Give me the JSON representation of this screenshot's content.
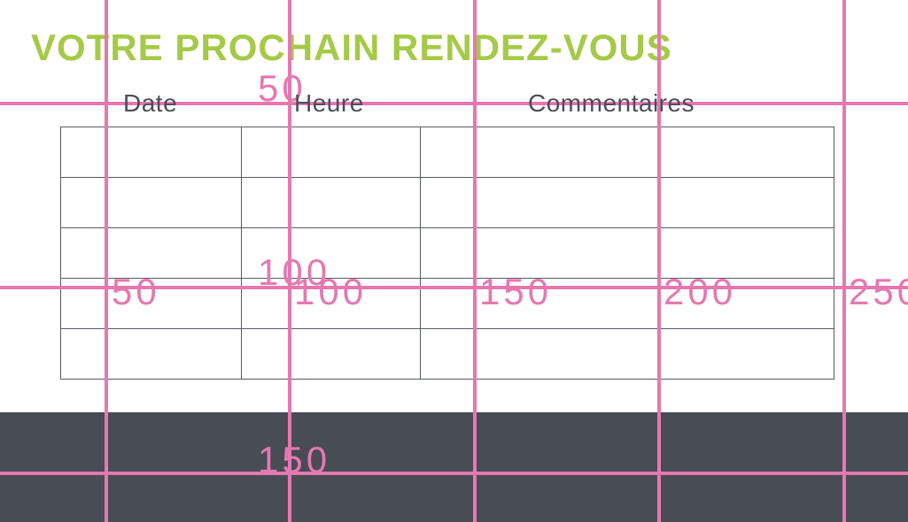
{
  "title": {
    "text": "VOTRE PROCHAIN RENDEZ-VOUS",
    "color": "#a5ca47"
  },
  "table": {
    "headers": [
      "Date",
      "Heure",
      "Commentaires"
    ],
    "rows": [
      [
        "",
        "",
        ""
      ],
      [
        "",
        "",
        ""
      ],
      [
        "",
        "",
        ""
      ],
      [
        "",
        "",
        ""
      ],
      [
        "",
        "",
        ""
      ]
    ],
    "border_color": "#575b62",
    "header_text_color": "#4a4e57"
  },
  "footer_band": {
    "color": "#484c55"
  },
  "grid_overlay": {
    "color": "#e678b0",
    "x_ruler_values": [
      "50",
      "100",
      "150",
      "200",
      "250"
    ],
    "y_ruler_values": [
      "50",
      "100",
      "150"
    ]
  }
}
